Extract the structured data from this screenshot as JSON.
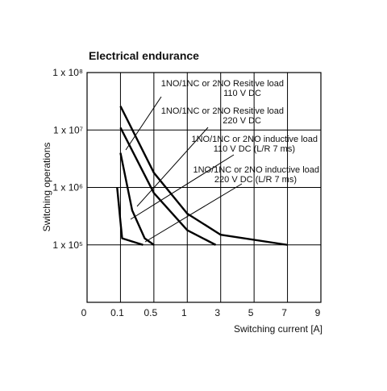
{
  "chart_data": {
    "type": "line",
    "title": "Electrical endurance",
    "x_label": "Switching current [A]",
    "y_label": "Switching operations",
    "log_y": true,
    "grid": true,
    "color": "#000000",
    "xlim": [
      0,
      9
    ],
    "xticks": [
      0,
      0.1,
      0.5,
      1,
      3,
      5,
      7,
      9
    ],
    "ylim": [
      10000,
      100000000
    ],
    "yticks": [
      {
        "value": 100000,
        "label": "1 x 10⁵"
      },
      {
        "value": 1000000,
        "label": "1 x 10⁶"
      },
      {
        "value": 10000000,
        "label": "1 x 10⁷"
      },
      {
        "value": 100000000,
        "label": "1 x 10⁸"
      }
    ],
    "series": [
      {
        "x": [
          0.1,
          0.5,
          1,
          3,
          7
        ],
        "values": [
          26000000,
          1800000,
          350000,
          150000,
          100000
        ]
      },
      {
        "x": [
          0.1,
          0.5,
          1,
          2.7
        ],
        "values": [
          11000000,
          800000,
          180000,
          100000
        ]
      },
      {
        "x": [
          0.1,
          0.24,
          0.39,
          0.5
        ],
        "values": [
          4000000,
          400000,
          130000,
          100000
        ]
      },
      {
        "x": [
          0.09,
          0.1,
          0.12,
          0.37
        ],
        "values": [
          1000000,
          250000,
          130000,
          100000
        ]
      }
    ],
    "annotations": [
      {
        "lines": [
          "1NO/1NC or 2NO Resitive load",
          "110 V DC"
        ]
      },
      {
        "lines": [
          "1NO/1NC or 2NO Resitive load",
          "220 V DC"
        ]
      },
      {
        "lines": [
          "1NO/1NC or 2NO inductive load",
          "110 V DC (L/R 7 ms)"
        ]
      },
      {
        "lines": [
          "1NO/1NC or 2NO inductive load",
          "220 V DC (L/R 7 ms)"
        ]
      }
    ]
  }
}
